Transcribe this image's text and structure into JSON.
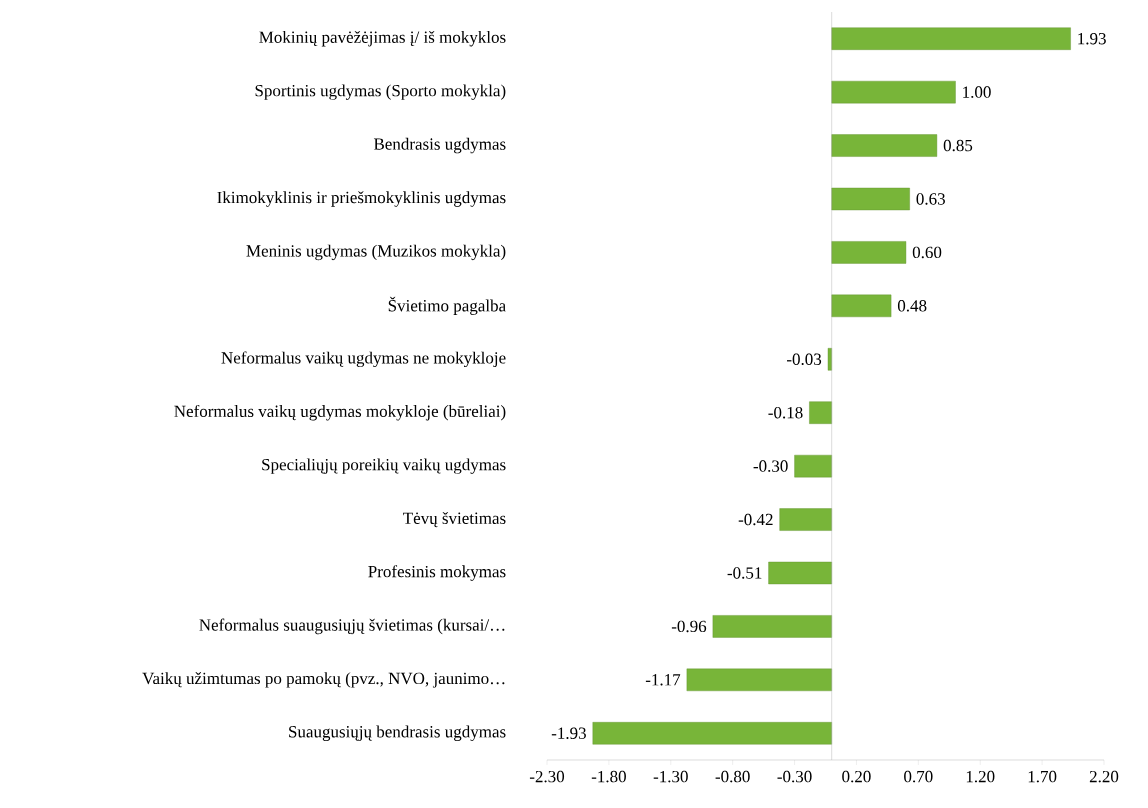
{
  "chart_data": {
    "type": "bar",
    "orientation": "horizontal",
    "categories": [
      "Mokinių pavėžėjimas į/ iš mokyklos",
      "Sportinis ugdymas (Sporto mokykla)",
      "Bendrasis ugdymas",
      "Ikimokyklinis ir priešmokyklinis ugdymas",
      "Meninis ugdymas (Muzikos mokykla)",
      "Švietimo pagalba",
      "Neformalus vaikų ugdymas ne mokykloje",
      "Neformalus vaikų ugdymas mokykloje (būreliai)",
      "Specialiųjų poreikių vaikų ugdymas",
      "Tėvų švietimas",
      "Profesinis mokymas",
      "Neformalus suaugusiųjų švietimas (kursai/…",
      "Vaikų užimtumas po pamokų (pvz., NVO, jaunimo…",
      "Suaugusiųjų bendrasis ugdymas"
    ],
    "values": [
      1.93,
      1.0,
      0.85,
      0.63,
      0.6,
      0.48,
      -0.03,
      -0.18,
      -0.3,
      -0.42,
      -0.51,
      -0.96,
      -1.17,
      -1.93
    ],
    "value_labels": [
      "1.93",
      "1.00",
      "0.85",
      "0.63",
      "0.60",
      "0.48",
      "-0.03",
      "-0.18",
      "-0.30",
      "-0.42",
      "-0.51",
      "-0.96",
      "-1.17",
      "-1.93"
    ],
    "color": "#78b539",
    "xlim": [
      -2.3,
      2.2
    ],
    "xticks": [
      {
        "value": -2.3,
        "label": "-2.30"
      },
      {
        "value": -1.8,
        "label": "-1.80"
      },
      {
        "value": -1.3,
        "label": "-1.30"
      },
      {
        "value": -0.8,
        "label": "-0.80"
      },
      {
        "value": -0.3,
        "label": "-0.30"
      },
      {
        "value": 0.2,
        "label": "0.20"
      },
      {
        "value": 0.7,
        "label": "0.70"
      },
      {
        "value": 1.2,
        "label": "1.20"
      },
      {
        "value": 1.7,
        "label": "1.70"
      },
      {
        "value": 2.2,
        "label": "2.20"
      }
    ]
  }
}
